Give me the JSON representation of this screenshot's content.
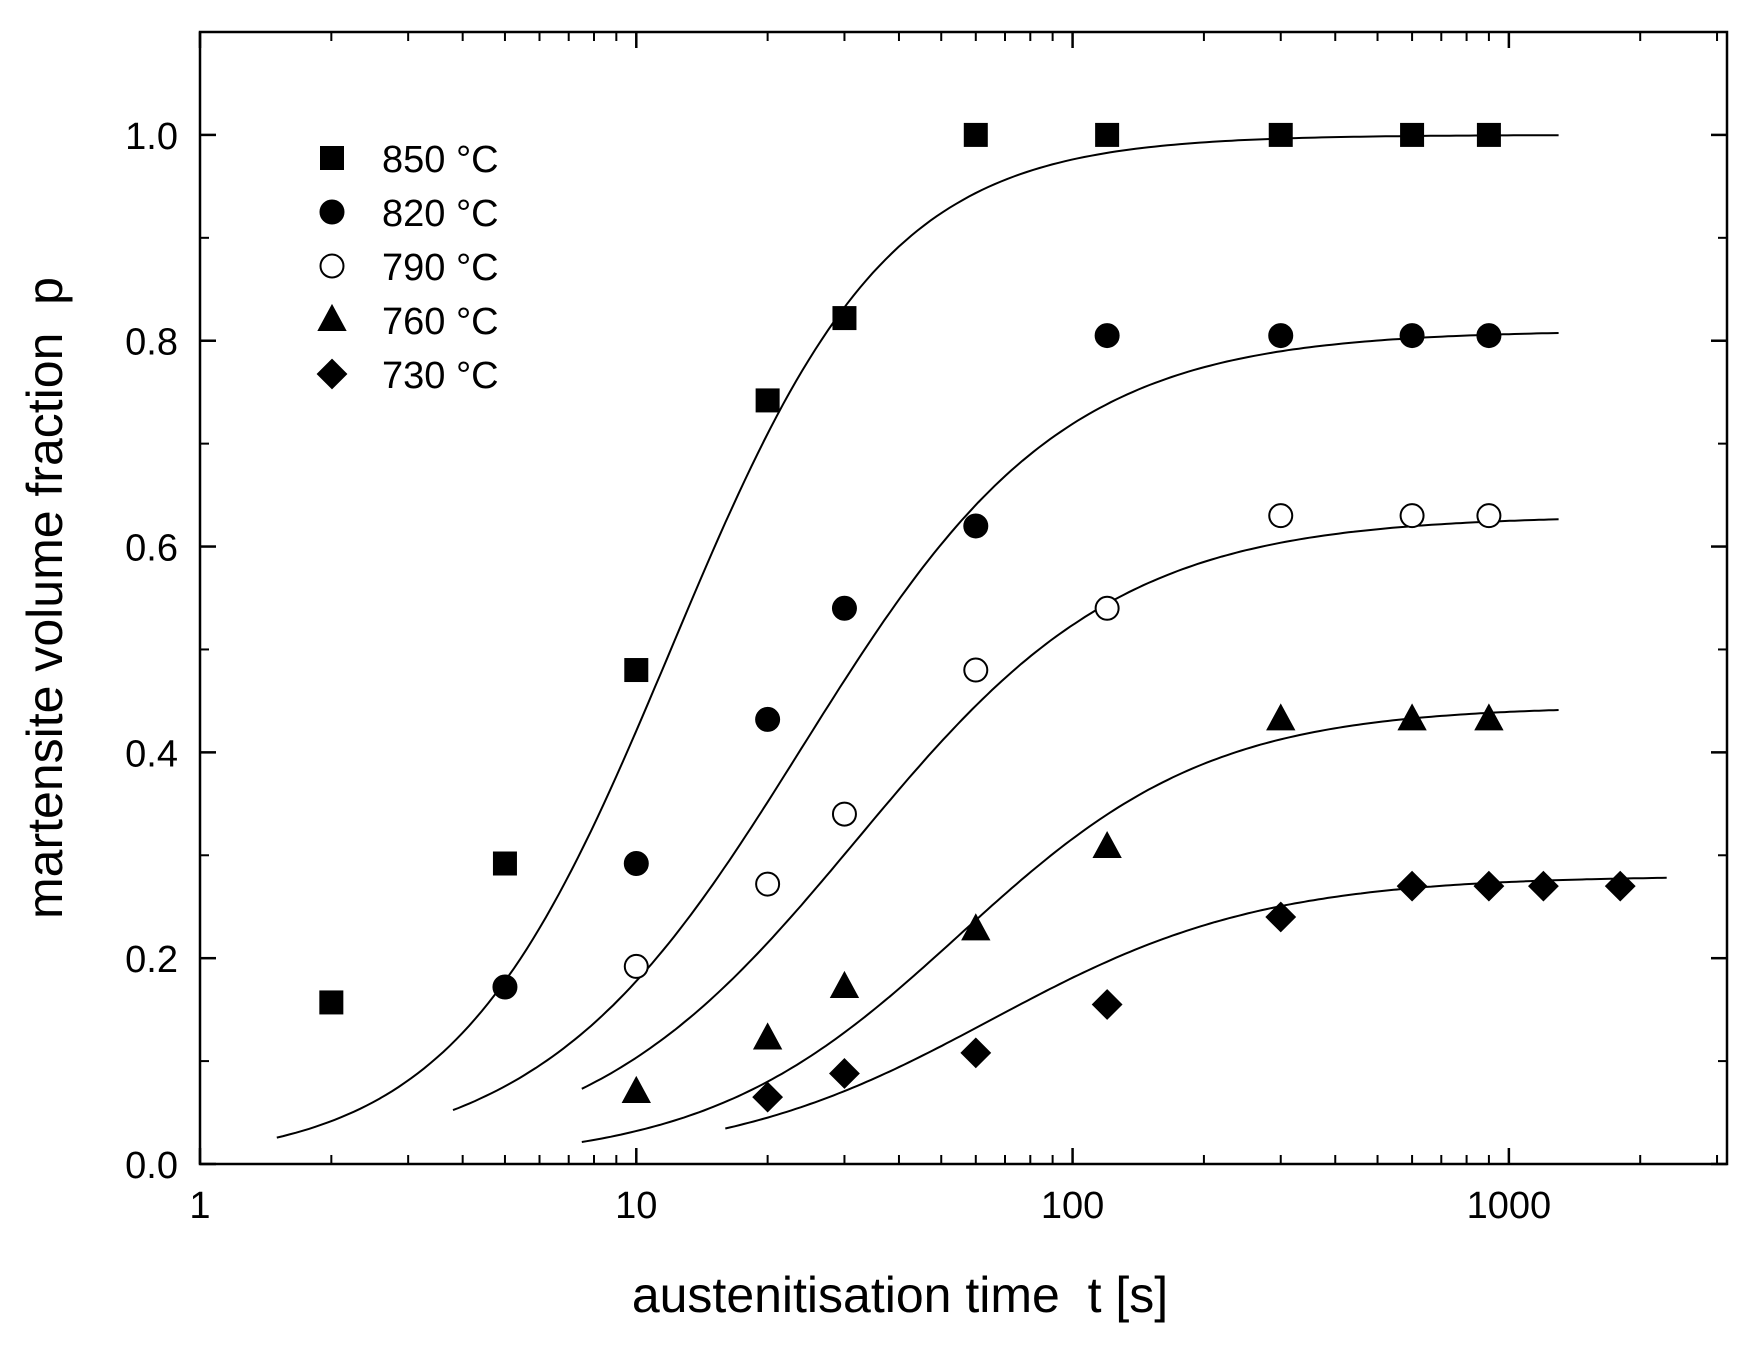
{
  "chart_data": {
    "type": "scatter",
    "title": "",
    "xlabel": "austenitisation time  t [s]",
    "ylabel": "martensite volume fraction  p",
    "xscale": "log",
    "xlim": [
      1,
      3162
    ],
    "ylim": [
      0.0,
      1.1
    ],
    "x_ticks": [
      1,
      10,
      100,
      1000
    ],
    "x_tick_labels": [
      "1",
      "10",
      "100",
      "1000"
    ],
    "y_ticks": [
      0.0,
      0.2,
      0.4,
      0.6,
      0.8,
      1.0
    ],
    "y_tick_labels": [
      "0.0",
      "0.2",
      "0.4",
      "0.6",
      "0.8",
      "1.0"
    ],
    "grid": false,
    "legend_position": "top-left",
    "series": [
      {
        "name": "850 °C",
        "marker": "square",
        "filled": true,
        "x": [
          2,
          5,
          10,
          20,
          30,
          60,
          120,
          300,
          600,
          900
        ],
        "y": [
          0.157,
          0.292,
          0.48,
          0.742,
          0.822,
          1.0,
          1.0,
          1.0,
          1.0,
          1.0
        ],
        "fit": {
          "pmax": 1.0,
          "t50": 12.0,
          "n": 1.75,
          "tmin": 1.5,
          "tmax": 1300
        }
      },
      {
        "name": "820 °C",
        "marker": "circle",
        "filled": true,
        "x": [
          5,
          10,
          20,
          30,
          60,
          120,
          300,
          600,
          900
        ],
        "y": [
          0.172,
          0.292,
          0.432,
          0.54,
          0.62,
          0.805,
          0.805,
          0.805,
          0.805
        ],
        "fit": {
          "pmax": 0.81,
          "t50": 24.0,
          "n": 1.45,
          "tmin": 3.8,
          "tmax": 1300
        }
      },
      {
        "name": "790 °C",
        "marker": "circle",
        "filled": false,
        "x": [
          10,
          20,
          30,
          60,
          120,
          300,
          600,
          900
        ],
        "y": [
          0.192,
          0.272,
          0.34,
          0.48,
          0.54,
          0.63,
          0.63,
          0.63
        ],
        "fit": {
          "pmax": 0.63,
          "t50": 32.0,
          "n": 1.4,
          "tmin": 7.5,
          "tmax": 1300
        }
      },
      {
        "name": "760 °C",
        "marker": "triangle",
        "filled": true,
        "x": [
          10,
          20,
          30,
          60,
          120,
          300,
          600,
          900
        ],
        "y": [
          0.07,
          0.122,
          0.172,
          0.228,
          0.308,
          0.432,
          0.432,
          0.432
        ],
        "fit": {
          "pmax": 0.445,
          "t50": 55.0,
          "n": 1.5,
          "tmin": 7.5,
          "tmax": 1300
        }
      },
      {
        "name": "730 °C",
        "marker": "diamond",
        "filled": true,
        "x": [
          20,
          30,
          60,
          120,
          300,
          600,
          900,
          1200,
          1800
        ],
        "y": [
          0.065,
          0.088,
          0.108,
          0.155,
          0.24,
          0.27,
          0.27,
          0.27,
          0.27
        ],
        "fit": {
          "pmax": 0.28,
          "t50": 65.0,
          "n": 1.4,
          "tmin": 16,
          "tmax": 2300
        }
      }
    ]
  }
}
